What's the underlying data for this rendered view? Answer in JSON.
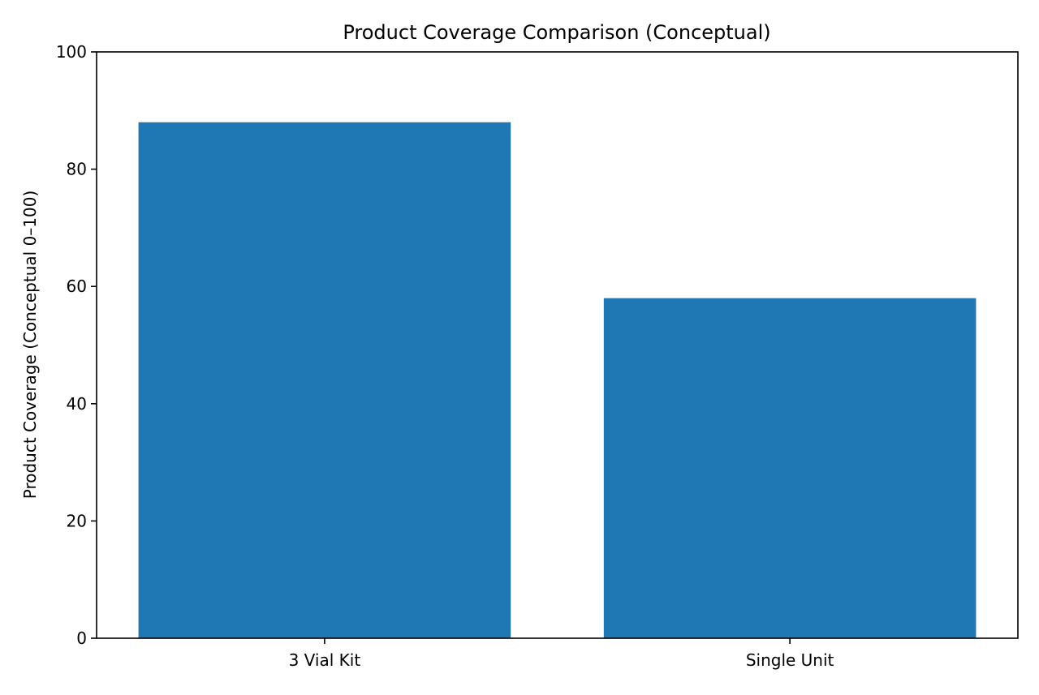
{
  "chart_data": {
    "type": "bar",
    "title": "Product Coverage Comparison (Conceptual)",
    "xlabel": "",
    "ylabel": "Product Coverage (Conceptual 0–100)",
    "categories": [
      "3 Vial Kit",
      "Single Unit"
    ],
    "values": [
      88,
      58
    ],
    "ylim": [
      0,
      100
    ],
    "yticks": [
      "0",
      "20",
      "40",
      "60",
      "80",
      "100"
    ],
    "grid": false,
    "bar_color": "#1f77b4"
  }
}
